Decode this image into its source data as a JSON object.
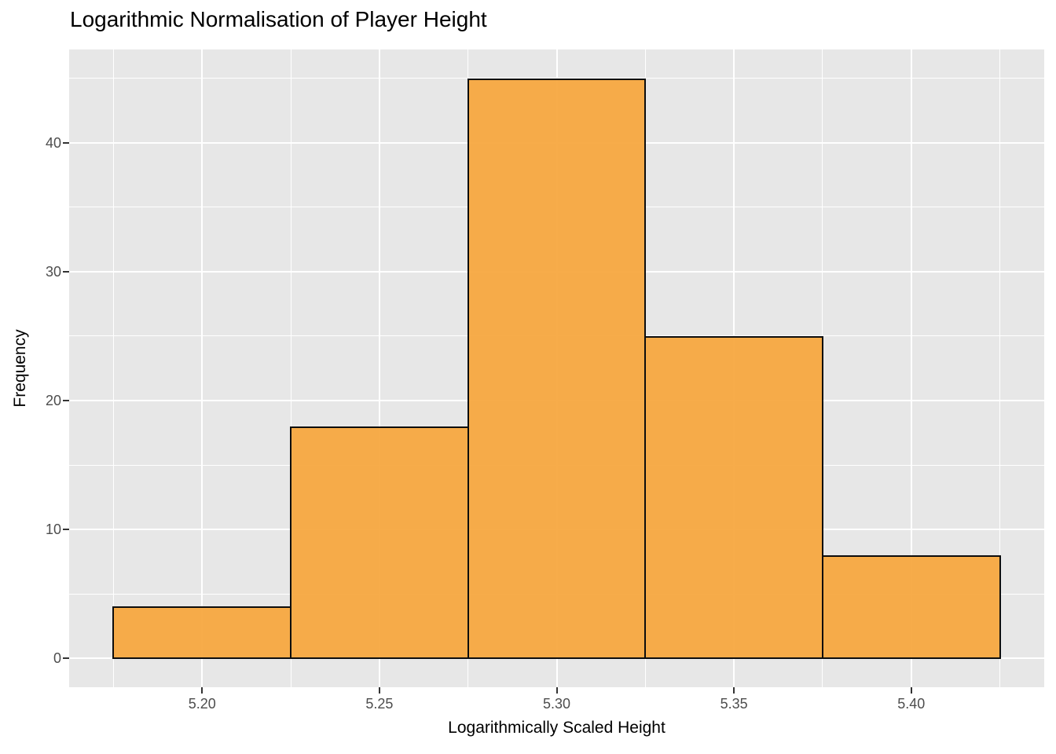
{
  "chart_data": {
    "type": "bar",
    "subtype": "histogram",
    "title": "Logarithmic Normalisation of Player Height",
    "xlabel": "Logarithmically Scaled Height",
    "ylabel": "Frequency",
    "bin_edges": [
      5.175,
      5.225,
      5.275,
      5.325,
      5.375,
      5.425
    ],
    "frequencies": [
      4,
      18,
      45,
      25,
      8
    ],
    "x_ticks": [
      {
        "value": 5.2,
        "label": "5.20"
      },
      {
        "value": 5.25,
        "label": "5.25"
      },
      {
        "value": 5.3,
        "label": "5.30"
      },
      {
        "value": 5.35,
        "label": "5.35"
      },
      {
        "value": 5.4,
        "label": "5.40"
      }
    ],
    "y_ticks": [
      {
        "value": 0,
        "label": "0"
      },
      {
        "value": 10,
        "label": "10"
      },
      {
        "value": 20,
        "label": "20"
      },
      {
        "value": 30,
        "label": "30"
      },
      {
        "value": 40,
        "label": "40"
      }
    ],
    "x_minor_gridlines": [
      5.175,
      5.225,
      5.275,
      5.325,
      5.375,
      5.425
    ],
    "y_minor_gridlines": [
      5,
      15,
      25,
      35,
      45
    ],
    "xlim": [
      5.1625,
      5.4375
    ],
    "ylim": [
      -2.25,
      47.25
    ],
    "grid": "major-and-minor",
    "legend_position": "none",
    "colors": {
      "bar_fill": "#F6A63C",
      "bar_fill_opacity": 0.93,
      "bar_stroke": "#0D0D0D",
      "panel_background": "#E7E7E7",
      "gridline": "#FFFFFF",
      "tick_label": "#4D4D4D",
      "tick_mark": "#333333",
      "title": "#000000",
      "page_background": "#FFFFFF"
    }
  }
}
